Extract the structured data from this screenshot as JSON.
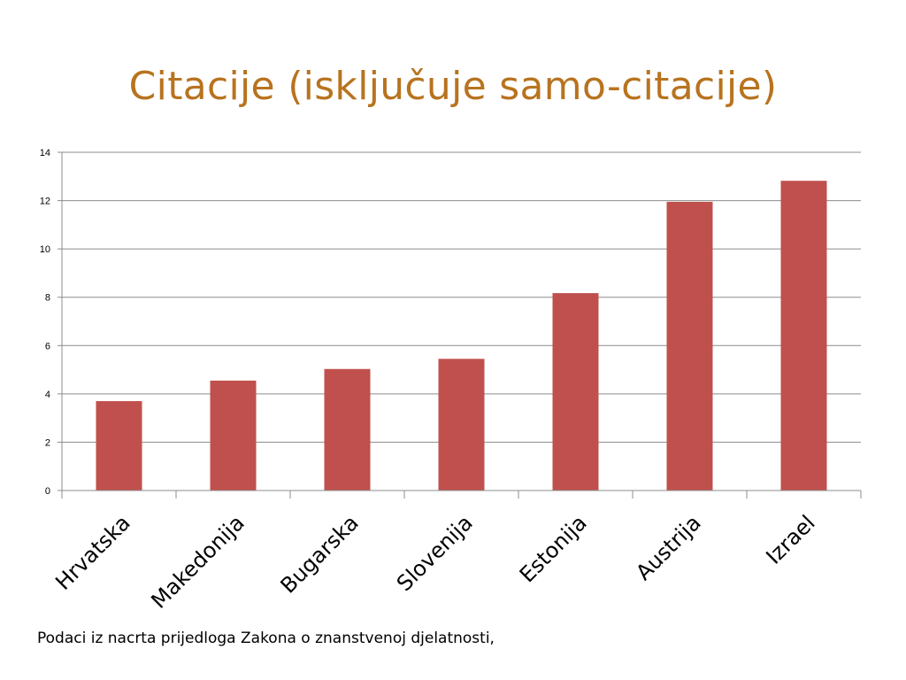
{
  "slide": {
    "title": "Citacije (isključuje samo-citacije)",
    "footnote": "Podaci iz nacrta prijedloga Zakona o znanstvenoj djelatnosti,"
  },
  "colors": {
    "title": "#b8731f",
    "bar": "#c0504d",
    "grid": "#8c8c8c",
    "axis": "#8c8c8c"
  },
  "chart_data": {
    "type": "bar",
    "title": "",
    "xlabel": "",
    "ylabel": "",
    "categories": [
      "Hrvatska",
      "Makedonija",
      "Bugarska",
      "Slovenija",
      "Estonija",
      "Austrija",
      "Izrael"
    ],
    "series": [
      {
        "values": [
          3.7,
          4.55,
          5.03,
          5.45,
          8.17,
          11.95,
          12.82
        ]
      }
    ],
    "ylim": [
      0,
      14
    ],
    "yticks": [
      0,
      2,
      4,
      6,
      8,
      10,
      12,
      14
    ],
    "ytick_labels": [
      "0",
      "2",
      "4",
      "6",
      "8",
      "10",
      "12",
      "14"
    ],
    "grid": true,
    "legend": "none"
  }
}
